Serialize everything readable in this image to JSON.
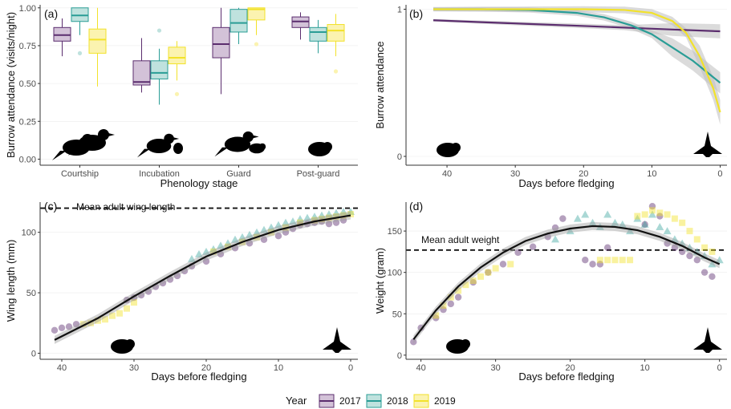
{
  "figure": {
    "legend": {
      "title": "Year",
      "years": [
        "2017",
        "2018",
        "2019"
      ],
      "colors": {
        "2017": "#5b2d6e",
        "2018": "#2a9d96",
        "2019": "#f2e22a"
      },
      "fills": {
        "2017": "#d3c2d8",
        "2018": "#bfe2de",
        "2019": "#fbf3b0"
      }
    }
  },
  "chart_data": [
    {
      "panel": "(a)",
      "type": "box",
      "xlabel": "Phenology stage",
      "ylabel": "Burrow attendance (visits/night)",
      "ylim": [
        -0.04,
        1.02
      ],
      "yticks": [
        "0.00",
        "0.25",
        "0.50",
        "0.75",
        "1.00"
      ],
      "categories": [
        "Courtship",
        "Incubation",
        "Guard",
        "Post-guard"
      ],
      "series": [
        {
          "name": "2017",
          "boxes": [
            {
              "min": 0.68,
              "q1": 0.78,
              "median": 0.82,
              "q3": 0.87,
              "max": 0.93,
              "outliers": []
            },
            {
              "min": 0.44,
              "q1": 0.49,
              "median": 0.51,
              "q3": 0.65,
              "max": 0.8,
              "outliers": []
            },
            {
              "min": 0.43,
              "q1": 0.67,
              "median": 0.76,
              "q3": 0.87,
              "max": 1.0,
              "outliers": []
            },
            {
              "min": 0.79,
              "q1": 0.87,
              "median": 0.91,
              "q3": 0.94,
              "max": 0.97,
              "outliers": []
            }
          ]
        },
        {
          "name": "2018",
          "boxes": [
            {
              "min": 0.82,
              "q1": 0.91,
              "median": 0.95,
              "q3": 1.0,
              "max": 1.0,
              "outliers": [
                0.7
              ]
            },
            {
              "min": 0.36,
              "q1": 0.53,
              "median": 0.57,
              "q3": 0.65,
              "max": 0.73,
              "outliers": [
                0.85
              ]
            },
            {
              "min": 0.76,
              "q1": 0.84,
              "median": 0.9,
              "q3": 0.99,
              "max": 1.0,
              "outliers": []
            },
            {
              "min": 0.7,
              "q1": 0.78,
              "median": 0.84,
              "q3": 0.87,
              "max": 0.92,
              "outliers": []
            }
          ]
        },
        {
          "name": "2019",
          "boxes": [
            {
              "min": 0.48,
              "q1": 0.7,
              "median": 0.79,
              "q3": 0.86,
              "max": 1.0,
              "outliers": []
            },
            {
              "min": 0.52,
              "q1": 0.63,
              "median": 0.67,
              "q3": 0.74,
              "max": 0.78,
              "outliers": [
                0.43
              ]
            },
            {
              "min": 0.82,
              "q1": 0.92,
              "median": 0.99,
              "q3": 1.0,
              "max": 1.0,
              "outliers": [
                0.76
              ]
            },
            {
              "min": 0.68,
              "q1": 0.78,
              "median": 0.85,
              "q3": 0.89,
              "max": 0.96,
              "outliers": [
                0.58
              ]
            }
          ]
        }
      ]
    },
    {
      "panel": "(b)",
      "type": "line",
      "xlabel": "Days before fledging",
      "ylabel": "Burrow attendance",
      "xlim": [
        46,
        -1
      ],
      "ylim": [
        -0.06,
        1.03
      ],
      "xticks": [
        "40",
        "30",
        "20",
        "10",
        "0"
      ],
      "yticks": [
        "0",
        "1"
      ],
      "series": [
        {
          "name": "2017",
          "x": [
            42,
            35,
            28,
            21,
            14,
            7,
            0
          ],
          "y": [
            0.925,
            0.912,
            0.9,
            0.888,
            0.875,
            0.862,
            0.85
          ]
        },
        {
          "name": "2018",
          "x": [
            42,
            35,
            28,
            21,
            17,
            13,
            10,
            7,
            4,
            0
          ],
          "y": [
            1.0,
            1.0,
            0.995,
            0.975,
            0.945,
            0.89,
            0.83,
            0.74,
            0.65,
            0.5
          ]
        },
        {
          "name": "2019",
          "x": [
            42,
            30,
            20,
            14,
            10,
            7,
            5,
            3,
            1,
            0
          ],
          "y": [
            1.0,
            1.0,
            1.0,
            0.995,
            0.975,
            0.92,
            0.84,
            0.68,
            0.46,
            0.3
          ]
        }
      ]
    },
    {
      "panel": "(c)",
      "type": "scatter",
      "xlabel": "Days before fledging",
      "ylabel": "Wing length (mm)",
      "xlim": [
        43,
        -1
      ],
      "ylim": [
        -5,
        125
      ],
      "xticks": [
        "40",
        "30",
        "20",
        "10",
        "0"
      ],
      "yticks": [
        "0",
        "50",
        "100"
      ],
      "reference_line": {
        "y": 120,
        "label": "Mean adult wing length"
      },
      "fit": {
        "x": [
          41,
          35,
          30,
          25,
          20,
          15,
          10,
          5,
          0
        ],
        "y": [
          11,
          29,
          47,
          64,
          80,
          92,
          102,
          109,
          114
        ]
      },
      "series": [
        {
          "name": "2017",
          "x": [
            41,
            40,
            39,
            38,
            31,
            30,
            29,
            28,
            27,
            26,
            25,
            24,
            23,
            22,
            20,
            18,
            16,
            14,
            12,
            10,
            9,
            8,
            7,
            6,
            5,
            4,
            3,
            2,
            1
          ],
          "y": [
            19,
            21,
            22,
            24,
            44,
            46,
            48,
            51,
            55,
            58,
            61,
            64,
            68,
            72,
            76,
            82,
            87,
            91,
            94,
            97,
            100,
            103,
            106,
            107,
            108,
            109,
            107,
            108,
            110
          ]
        },
        {
          "name": "2018",
          "x": [
            22,
            21,
            20,
            19,
            18,
            17,
            16,
            15,
            14,
            13,
            12,
            11,
            10,
            9,
            8,
            7,
            6,
            5,
            4,
            3,
            2,
            1,
            0
          ],
          "y": [
            78,
            82,
            84,
            86,
            89,
            91,
            94,
            96,
            98,
            100,
            102,
            104,
            106,
            108,
            109,
            111,
            112,
            113,
            114,
            115,
            116,
            117,
            117
          ]
        },
        {
          "name": "2019",
          "x": [
            37,
            36,
            35,
            34,
            33,
            32,
            31,
            30,
            19,
            17,
            15,
            13,
            11,
            9,
            7,
            5,
            4,
            3,
            2,
            1,
            0
          ],
          "y": [
            24,
            25,
            27,
            28,
            31,
            33,
            37,
            42,
            84,
            88,
            92,
            96,
            100,
            104,
            108,
            110,
            111,
            112,
            113,
            114,
            115
          ]
        }
      ]
    },
    {
      "panel": "(d)",
      "type": "scatter",
      "xlabel": "Days before fledging",
      "ylabel": "Weight (gram)",
      "xlim": [
        42,
        -1
      ],
      "ylim": [
        -5,
        185
      ],
      "xticks": [
        "40",
        "30",
        "20",
        "10",
        "0"
      ],
      "yticks": [
        "0",
        "50",
        "100",
        "150"
      ],
      "reference_line": {
        "y": 127,
        "label": "Mean adult weight"
      },
      "fit": {
        "x": [
          41,
          38,
          35,
          32,
          29,
          26,
          23,
          20,
          17,
          14,
          11,
          8,
          5,
          2,
          0
        ],
        "y": [
          19,
          54,
          83,
          106,
          124,
          138,
          147,
          153,
          156,
          155,
          151,
          143,
          132,
          118,
          110
        ]
      },
      "series": [
        {
          "name": "2017",
          "x": [
            41,
            40,
            38,
            37,
            36,
            35,
            33,
            31,
            29,
            27,
            25,
            23,
            22,
            21,
            18,
            17,
            16,
            15,
            10,
            9,
            8,
            7,
            6,
            5,
            4,
            3,
            2,
            1
          ],
          "y": [
            16,
            33,
            45,
            55,
            62,
            70,
            88,
            100,
            110,
            124,
            131,
            143,
            154,
            165,
            115,
            110,
            110,
            130,
            158,
            180,
            168,
            135,
            130,
            125,
            120,
            115,
            100,
            95
          ]
        },
        {
          "name": "2018",
          "x": [
            22,
            20,
            19,
            18,
            17,
            16,
            15,
            14,
            13,
            12,
            11,
            10,
            9,
            8,
            7,
            6,
            5,
            4,
            3,
            2,
            1,
            0
          ],
          "y": [
            140,
            150,
            165,
            170,
            160,
            155,
            170,
            160,
            158,
            150,
            165,
            158,
            170,
            155,
            150,
            140,
            135,
            130,
            125,
            120,
            110,
            115
          ]
        },
        {
          "name": "2019",
          "x": [
            38,
            37,
            36,
            35,
            34,
            33,
            32,
            31,
            30,
            28,
            16,
            15,
            14,
            13,
            12,
            11,
            10,
            9,
            8,
            7,
            6,
            5,
            4,
            3,
            2,
            1
          ],
          "y": [
            48,
            60,
            70,
            78,
            85,
            90,
            95,
            100,
            105,
            110,
            115,
            115,
            115,
            115,
            115,
            168,
            170,
            175,
            172,
            170,
            165,
            160,
            150,
            140,
            130,
            125
          ]
        }
      ]
    }
  ]
}
